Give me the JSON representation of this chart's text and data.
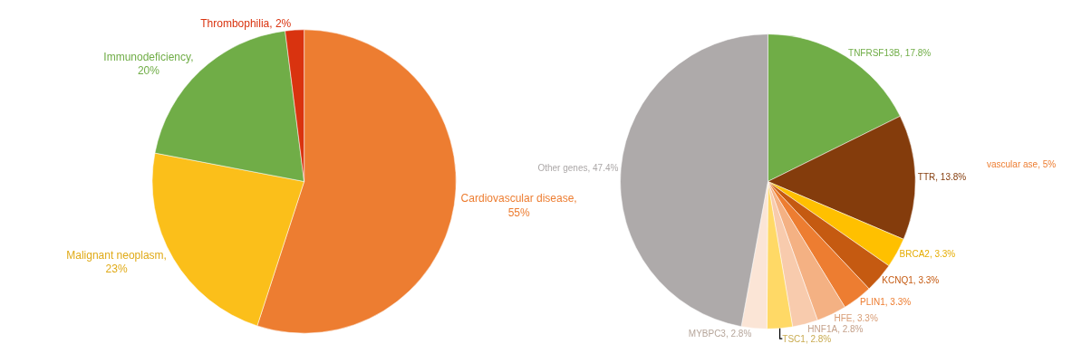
{
  "chart_data": [
    {
      "type": "pie",
      "categories": [
        "Cardiovascular disease, 55%",
        "Malignant neoplasm, 23%",
        "Immunodeficiency, 20%",
        "Thrombophilia, 2%"
      ],
      "values": [
        55,
        23,
        20,
        2
      ],
      "colors": [
        "#ed7d31",
        "#fbbf1a",
        "#70ad47",
        "#d9330f"
      ],
      "legend": false
    },
    {
      "type": "pie",
      "categories": [
        "TNFRSF13B, 17.8%",
        "TTR, 13.8%",
        "BRCA2, 3.3%",
        "KCNQ1, 3.3%",
        "PLIN1, 3.3%",
        "HFE, 3.3%",
        "HNF1A, 2.8%",
        "TSC1, 2.8%",
        "MYBPC3, 2.8%",
        "Other genes, 47.4%"
      ],
      "values": [
        17.8,
        13.8,
        3.3,
        3.3,
        3.3,
        3.3,
        2.8,
        2.8,
        2.8,
        47.4
      ],
      "colors": [
        "#70ad47",
        "#843c0c",
        "#ffc000",
        "#c55a11",
        "#ed7d31",
        "#f4b183",
        "#f8cbad",
        "#ffd966",
        "#fbe5d6",
        "#aeaaaa"
      ],
      "annotations": [
        "vascular ase, 5%"
      ],
      "legend": false
    }
  ]
}
